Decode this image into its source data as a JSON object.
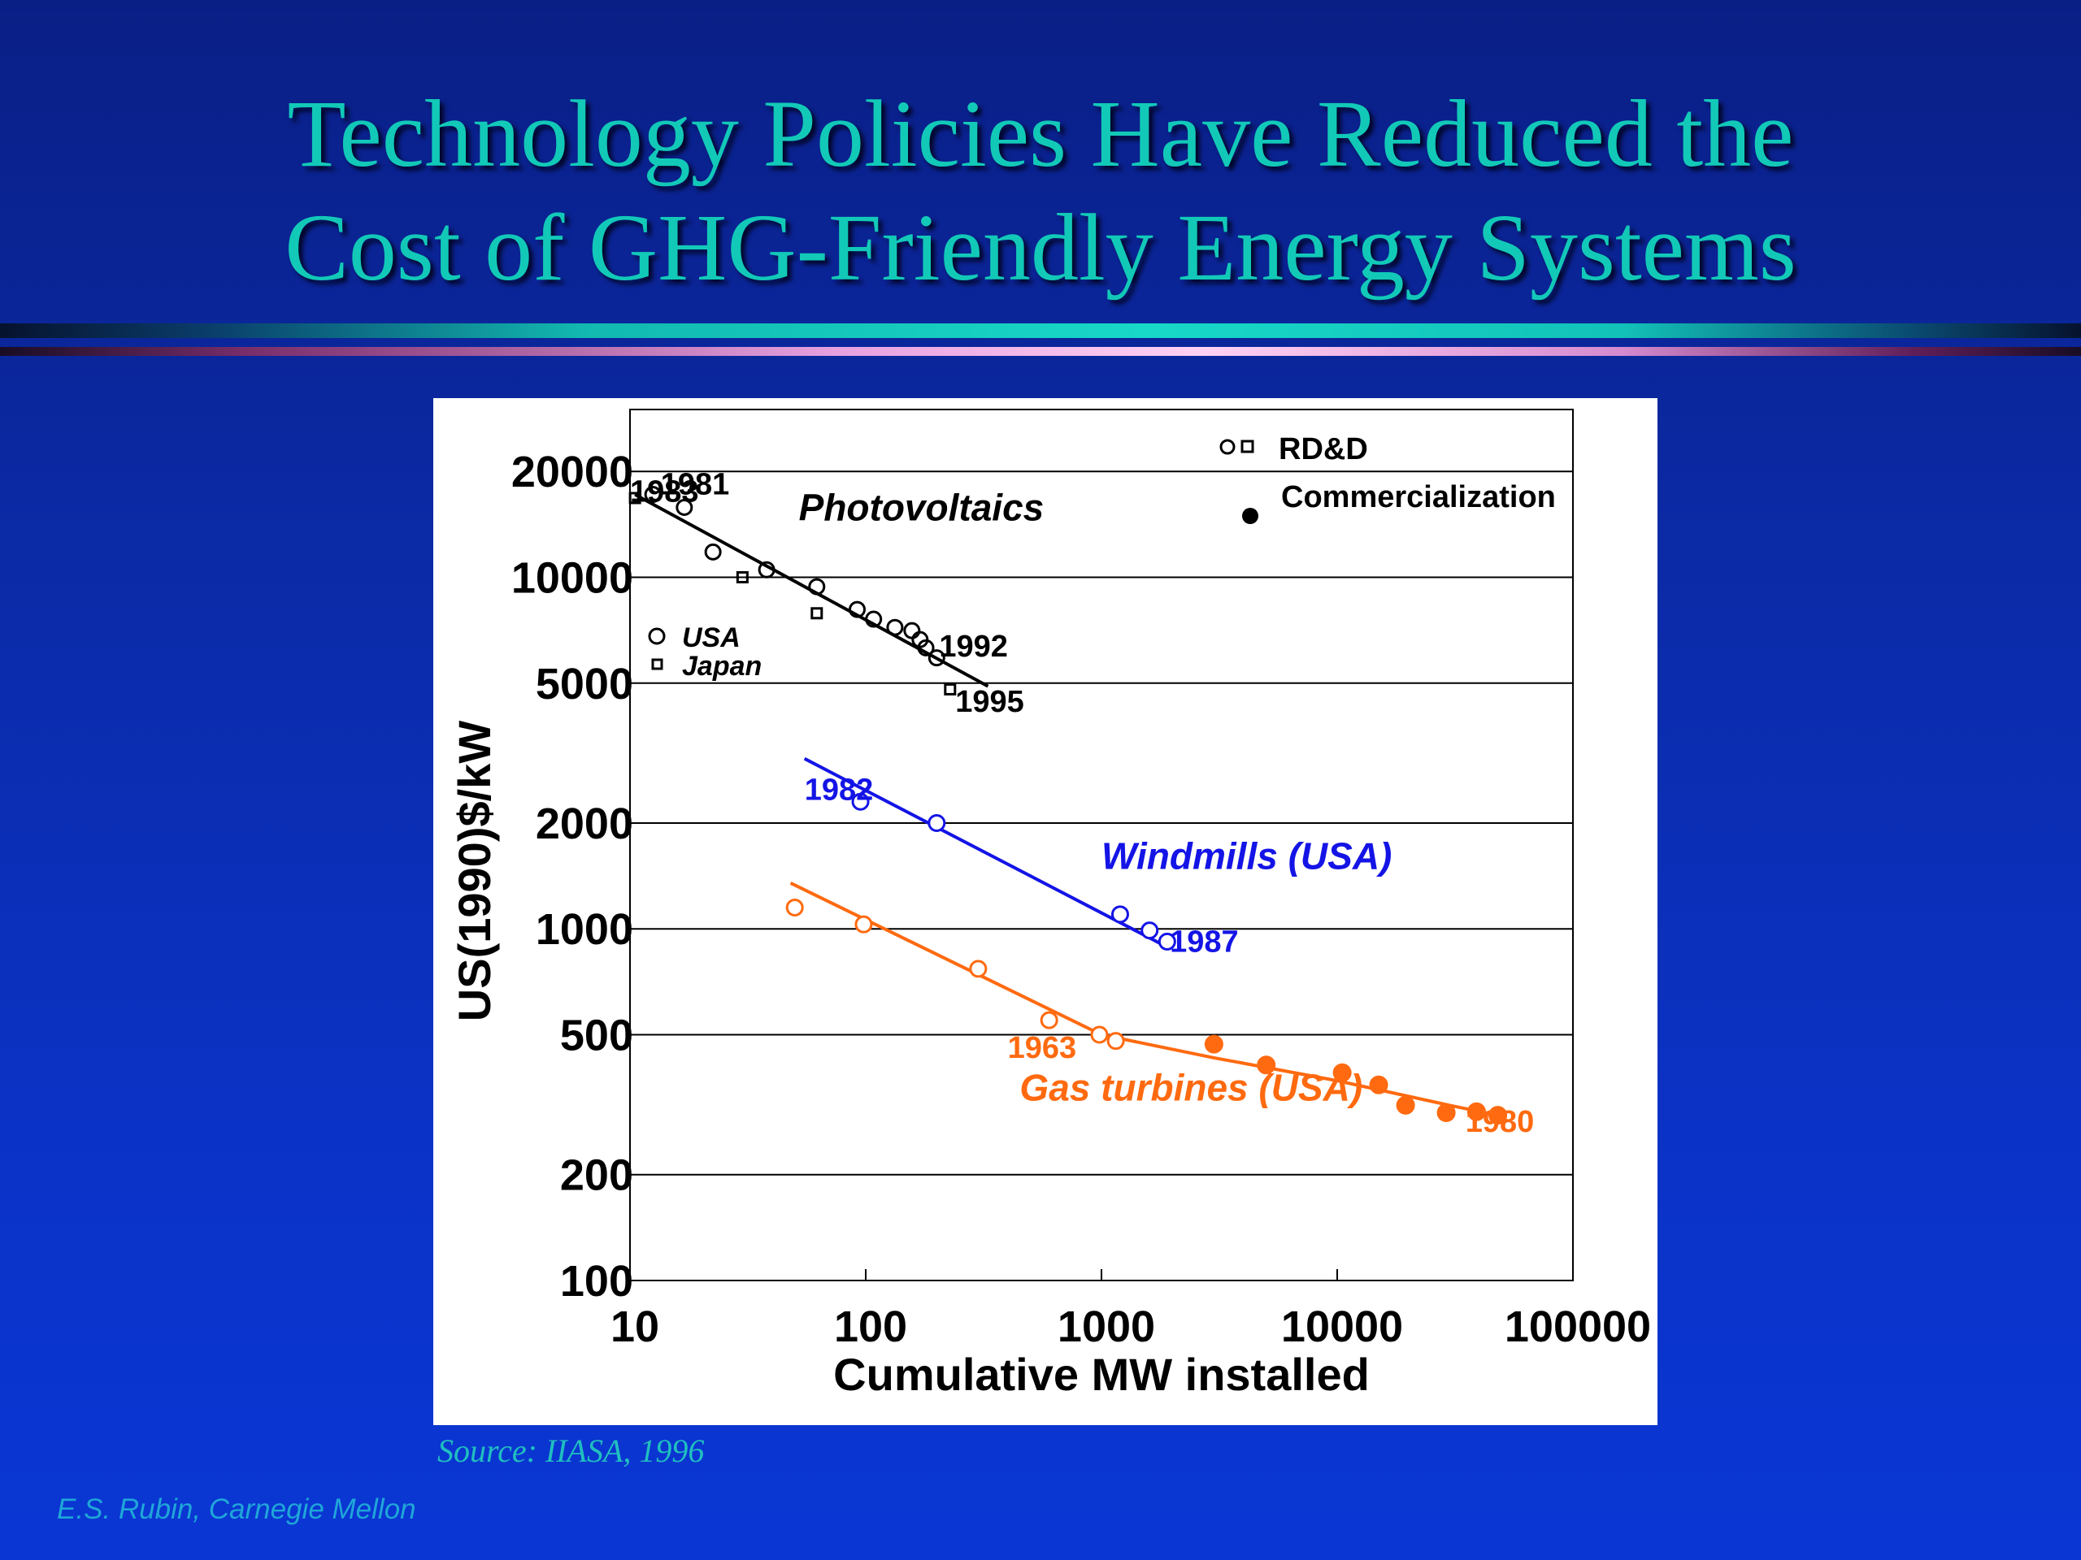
{
  "slide": {
    "title_line1": "Technology Policies Have Reduced the",
    "title_line2": "Cost of GHG-Friendly Energy Systems",
    "source": "Source: IIASA, 1996",
    "credit": "E.S. Rubin, Carnegie Mellon"
  },
  "colors": {
    "background": "#0b2aa6",
    "title": "#12c9b8",
    "pv": "#000000",
    "wind": "#1414e6",
    "gas": "#ff6a10",
    "source": "#20bfc0",
    "credit": "#1fa6d8"
  },
  "chart_data": {
    "type": "scatter",
    "xscale": "log",
    "yscale": "log",
    "xlabel": "Cumulative MW installed",
    "ylabel": "US(1990)$/kW",
    "xlim": [
      10,
      100000
    ],
    "ylim": [
      100,
      30000
    ],
    "xticks": [
      10,
      100,
      1000,
      10000,
      100000
    ],
    "xtick_labels": [
      "10",
      "100",
      "1000",
      "10000",
      "100000"
    ],
    "yticks": [
      100,
      200,
      500,
      1000,
      2000,
      5000,
      10000,
      20000
    ],
    "ytick_labels": [
      "100",
      "200",
      "500",
      "1000",
      "2000",
      "5000",
      "10000",
      "20000"
    ],
    "grid": "horizontal",
    "legend": {
      "placement": "top-right",
      "rdd_label": "RD&D",
      "commercial_label": "Commercialization"
    },
    "pv_legend": {
      "usa_label": "USA",
      "japan_label": "Japan"
    },
    "series": [
      {
        "key": "pv",
        "name": "Photovoltaics",
        "usa_rdd": [
          [
            12.5,
            17200
          ],
          [
            17,
            15800
          ],
          [
            22.5,
            11800
          ],
          [
            38,
            10500
          ],
          [
            62,
            9400
          ],
          [
            92,
            8100
          ],
          [
            108,
            7600
          ],
          [
            133,
            7200
          ],
          [
            157,
            7050
          ],
          [
            170,
            6650
          ],
          [
            180,
            6300
          ],
          [
            200,
            5900
          ]
        ],
        "japan_rdd": [
          [
            10.5,
            16800
          ],
          [
            30,
            10000
          ],
          [
            62,
            7900
          ],
          [
            228,
            4800
          ]
        ],
        "trend": [
          [
            10.5,
            17200
          ],
          [
            330,
            4900
          ]
        ]
      },
      {
        "key": "wind",
        "name": "Windmills (USA)",
        "rdd": [
          [
            95,
            2300
          ],
          [
            200,
            2000
          ],
          [
            1200,
            1100
          ],
          [
            1600,
            990
          ],
          [
            1900,
            920
          ]
        ],
        "trend": [
          [
            55,
            3050
          ],
          [
            1950,
            880
          ]
        ]
      },
      {
        "key": "gas",
        "name": "Gas turbines (USA)",
        "rdd": [
          [
            50,
            1150
          ],
          [
            98,
            1030
          ],
          [
            300,
            770
          ],
          [
            600,
            550
          ],
          [
            980,
            500
          ],
          [
            1150,
            480
          ]
        ],
        "commercial": [
          [
            3000,
            470
          ],
          [
            5000,
            410
          ],
          [
            10500,
            390
          ],
          [
            15000,
            360
          ],
          [
            19500,
            315
          ],
          [
            29000,
            300
          ],
          [
            39000,
            302
          ],
          [
            48000,
            295
          ]
        ],
        "trend": [
          [
            48,
            1350
          ],
          [
            1000,
            500
          ],
          [
            3000,
            430
          ],
          [
            10000,
            370
          ],
          [
            30000,
            315
          ],
          [
            48000,
            295
          ]
        ]
      }
    ],
    "annotations": [
      {
        "text": "1981",
        "x": 13.5,
        "y": 17200,
        "series": "pv"
      },
      {
        "text": "1983",
        "x": 10,
        "y": 16400,
        "series": "pv"
      },
      {
        "text": "1992",
        "x": 205,
        "y": 5950,
        "series": "pv"
      },
      {
        "text": "1995",
        "x": 240,
        "y": 4150,
        "series": "pv"
      },
      {
        "text": "1982",
        "x": 55,
        "y": 2330,
        "series": "wind"
      },
      {
        "text": "1987",
        "x": 1950,
        "y": 860,
        "series": "wind"
      },
      {
        "text": "1963",
        "x": 400,
        "y": 430,
        "series": "gas"
      },
      {
        "text": "1980",
        "x": 35000,
        "y": 265,
        "series": "gas"
      }
    ],
    "series_labels": [
      {
        "text": "Photovoltaics",
        "x": 52,
        "y": 14500,
        "series": "pv"
      },
      {
        "text": "Windmills (USA)",
        "x": 1000,
        "y": 1480,
        "series": "wind"
      },
      {
        "text": "Gas turbines (USA)",
        "x": 450,
        "y": 325,
        "series": "gas"
      }
    ]
  }
}
